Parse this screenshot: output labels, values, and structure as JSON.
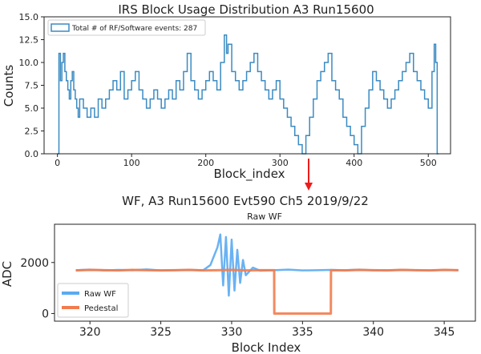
{
  "chart_data": [
    {
      "type": "line",
      "title": "IRS Block Usage Distribution A3 Run15600",
      "xlabel": "Block_index",
      "ylabel": "Counts",
      "xlim": [
        -18,
        530
      ],
      "ylim": [
        0,
        15
      ],
      "xticks": [
        0,
        100,
        200,
        300,
        400,
        500
      ],
      "yticks": [
        0.0,
        2.5,
        5.0,
        7.5,
        10.0,
        12.5,
        15.0
      ],
      "legend_position": "top-left",
      "grid": false,
      "series": [
        {
          "name": "Total # of RF/Software events: 287",
          "color": "#3b8bc2",
          "draw": "step",
          "x": [
            0,
            2,
            4,
            6,
            8,
            10,
            12,
            14,
            16,
            18,
            20,
            22,
            24,
            26,
            28,
            30,
            35,
            40,
            45,
            50,
            55,
            60,
            65,
            70,
            75,
            80,
            85,
            90,
            95,
            100,
            105,
            110,
            115,
            120,
            125,
            130,
            135,
            140,
            145,
            150,
            155,
            160,
            165,
            170,
            175,
            180,
            185,
            190,
            195,
            200,
            205,
            210,
            215,
            220,
            225,
            228,
            230,
            235,
            240,
            245,
            250,
            255,
            260,
            265,
            270,
            275,
            280,
            285,
            290,
            295,
            300,
            305,
            310,
            315,
            320,
            325,
            330,
            335,
            340,
            345,
            350,
            355,
            360,
            365,
            370,
            375,
            380,
            385,
            390,
            395,
            400,
            405,
            410,
            415,
            420,
            425,
            430,
            435,
            440,
            445,
            450,
            455,
            460,
            465,
            470,
            475,
            480,
            485,
            490,
            495,
            500,
            505,
            508,
            510,
            512
          ],
          "y": [
            0,
            11,
            8,
            10,
            11,
            9,
            8,
            7,
            6,
            8,
            9,
            7,
            6,
            5,
            4,
            6,
            5,
            4,
            5,
            4,
            6,
            5,
            6,
            7,
            8,
            7,
            9,
            6,
            7,
            8,
            9,
            7,
            6,
            5,
            6,
            7,
            6,
            5,
            6,
            7,
            6,
            8,
            7,
            9,
            11,
            8,
            7,
            6,
            7,
            8,
            9,
            8,
            7,
            10,
            13,
            11,
            12,
            9,
            8,
            7,
            8,
            9,
            10,
            11,
            9,
            8,
            7,
            6,
            7,
            8,
            6,
            5,
            4,
            3,
            2,
            1,
            0,
            2,
            4,
            6,
            8,
            9,
            10,
            11,
            8,
            7,
            6,
            4,
            3,
            2,
            1,
            0,
            3,
            5,
            7,
            9,
            8,
            7,
            6,
            5,
            6,
            7,
            8,
            9,
            10,
            11,
            9,
            8,
            7,
            6,
            5,
            9,
            12,
            10,
            0
          ]
        }
      ]
    },
    {
      "type": "line",
      "title": "Raw WF",
      "suptitle": "WF, A3 Run15600 Evt590 Ch5 2019/9/22",
      "xlabel": "Block Index",
      "ylabel": "ADC",
      "xlim": [
        317.5,
        347.2
      ],
      "ylim": [
        -300,
        3500
      ],
      "xticks": [
        320,
        325,
        330,
        335,
        340,
        345
      ],
      "yticks": [
        0,
        2000
      ],
      "legend_position": "bottom-left",
      "grid": false,
      "series": [
        {
          "name": "Raw WF",
          "color": "#5aaaf2",
          "x": [
            319,
            320,
            321,
            322,
            323,
            324,
            325,
            326,
            327,
            328,
            328.5,
            329,
            329.2,
            329.4,
            329.6,
            329.8,
            330,
            330.2,
            330.4,
            330.6,
            330.8,
            331,
            331.5,
            332,
            333,
            334,
            335,
            336,
            337,
            338,
            339,
            340,
            341,
            342,
            343,
            344,
            345,
            346
          ],
          "y": [
            1700,
            1720,
            1690,
            1710,
            1700,
            1730,
            1690,
            1700,
            1710,
            1700,
            1900,
            2600,
            3100,
            1100,
            3000,
            700,
            2900,
            900,
            2500,
            1200,
            2100,
            1500,
            1800,
            1680,
            1700,
            1720,
            1690,
            1700,
            1710,
            1700,
            1720,
            1690,
            1700,
            1710,
            1700,
            1690,
            1710,
            1700
          ]
        },
        {
          "name": "Pedestal",
          "color": "#f27c4e",
          "x": [
            319,
            320,
            321,
            322,
            323,
            324,
            325,
            326,
            327,
            328,
            329,
            330,
            331,
            332,
            333,
            333.01,
            337,
            337.01,
            338,
            339,
            340,
            341,
            342,
            343,
            344,
            345,
            346
          ],
          "y": [
            1690,
            1710,
            1700,
            1690,
            1710,
            1700,
            1690,
            1700,
            1710,
            1690,
            1700,
            1710,
            1690,
            1700,
            1700,
            0,
            0,
            1700,
            1690,
            1710,
            1700,
            1690,
            1710,
            1700,
            1690,
            1710,
            1700
          ]
        }
      ]
    }
  ]
}
